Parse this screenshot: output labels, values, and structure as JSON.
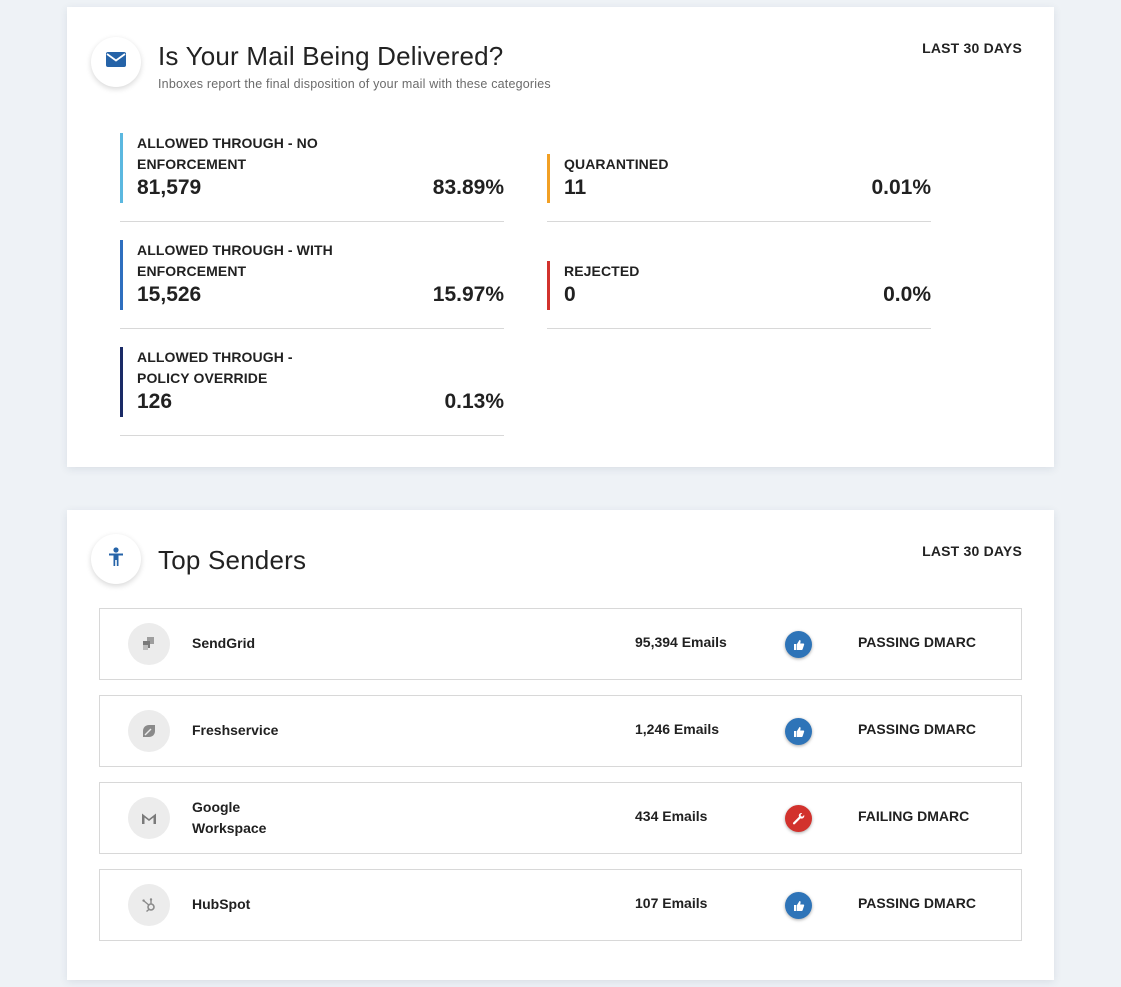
{
  "delivery": {
    "title": "Is Your Mail Being Delivered?",
    "subtitle": "Inboxes report the final disposition of your mail with these categories",
    "range": "LAST 30 DAYS",
    "icon": "envelope-icon",
    "stats": [
      {
        "label": "ALLOWED THROUGH - NO ENFORCEMENT",
        "count": "81,579",
        "percent": "83.89%",
        "color": "#5bb8e0"
      },
      {
        "label": "ALLOWED THROUGH - WITH ENFORCEMENT",
        "count": "15,526",
        "percent": "15.97%",
        "color": "#2f6fbf"
      },
      {
        "label": "ALLOWED THROUGH - POLICY OVERRIDE",
        "count": "126",
        "percent": "0.13%",
        "color": "#1a2a66"
      },
      {
        "label": "QUARANTINED",
        "count": "11",
        "percent": "0.01%",
        "color": "#f2a024"
      },
      {
        "label": "REJECTED",
        "count": "0",
        "percent": "0.0%",
        "color": "#d2322d"
      }
    ]
  },
  "senders": {
    "title": "Top Senders",
    "range": "LAST 30 DAYS",
    "icon": "person-icon",
    "rows": [
      {
        "name": "SendGrid",
        "emails": "95,394 Emails",
        "status": "PASSING DMARC",
        "status_icon": "thumbs-up-icon",
        "status_color": "#2e74b8",
        "logo": "sendgrid-logo-icon"
      },
      {
        "name": "Freshservice",
        "emails": "1,246 Emails",
        "status": "PASSING DMARC",
        "status_icon": "thumbs-up-icon",
        "status_color": "#2e74b8",
        "logo": "freshservice-logo-icon"
      },
      {
        "name": "Google Workspace",
        "emails": "434 Emails",
        "status": "FAILING DMARC",
        "status_icon": "wrench-icon",
        "status_color": "#d2322d",
        "logo": "gmail-logo-icon"
      },
      {
        "name": "HubSpot",
        "emails": "107 Emails",
        "status": "PASSING DMARC",
        "status_icon": "thumbs-up-icon",
        "status_color": "#2e74b8",
        "logo": "hubspot-logo-icon"
      }
    ]
  }
}
